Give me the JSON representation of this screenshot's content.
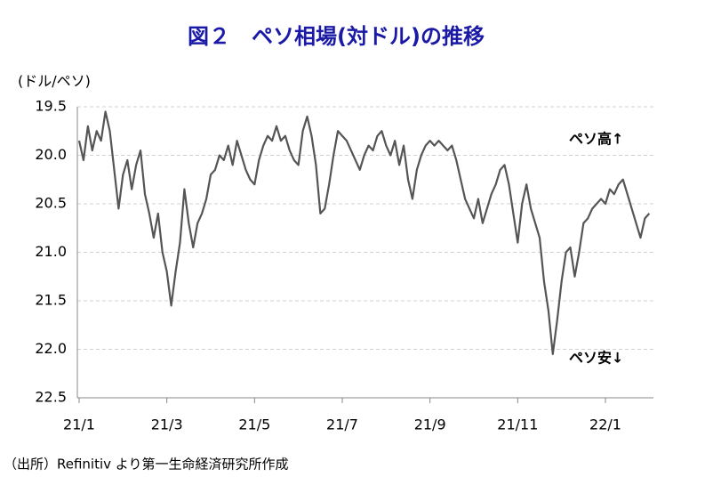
{
  "chart_data": {
    "type": "line",
    "title": "図２　ペソ相場(対ドル)の推移",
    "y_label": "(ドル/ペソ)",
    "source": "（出所）Refinitiv より第一生命経済研究所作成",
    "annotations": [
      "ペソ高↑",
      "ペソ安↓"
    ],
    "y_inverted": true,
    "grid": true,
    "ylim": [
      19.5,
      22.5
    ],
    "yticks": [
      {
        "value": 19.5,
        "label": "19.5"
      },
      {
        "value": 20,
        "label": "20.0"
      },
      {
        "value": 20.5,
        "label": "20.5"
      },
      {
        "value": 21,
        "label": "21.0"
      },
      {
        "value": 21.5,
        "label": "21.5"
      },
      {
        "value": 22,
        "label": "22.0"
      },
      {
        "value": 22.5,
        "label": "22.5"
      }
    ],
    "categories": [
      "21/1",
      null,
      null,
      null,
      null,
      null,
      null,
      null,
      null,
      null,
      null,
      null,
      null,
      null,
      null,
      null,
      null,
      null,
      null,
      null,
      "21/3",
      null,
      null,
      null,
      null,
      null,
      null,
      null,
      null,
      null,
      null,
      null,
      null,
      null,
      null,
      null,
      null,
      null,
      null,
      null,
      "21/5",
      null,
      null,
      null,
      null,
      null,
      null,
      null,
      null,
      null,
      null,
      null,
      null,
      null,
      null,
      null,
      null,
      null,
      null,
      null,
      "21/7",
      null,
      null,
      null,
      null,
      null,
      null,
      null,
      null,
      null,
      null,
      null,
      null,
      null,
      null,
      null,
      null,
      null,
      null,
      null,
      "21/9",
      null,
      null,
      null,
      null,
      null,
      null,
      null,
      null,
      null,
      null,
      null,
      null,
      null,
      null,
      null,
      null,
      null,
      null,
      null,
      "21/11",
      null,
      null,
      null,
      null,
      null,
      null,
      null,
      null,
      null,
      null,
      null,
      null,
      null,
      null,
      null,
      null,
      null,
      null,
      null,
      "22/1",
      null,
      null,
      null,
      null,
      null,
      null,
      null,
      null,
      null,
      null
    ],
    "series": [
      {
        "color": "#555555",
        "values": [
          19.85,
          20.05,
          19.7,
          19.95,
          19.75,
          19.85,
          19.55,
          19.75,
          20.15,
          20.55,
          20.2,
          20.05,
          20.35,
          20.1,
          19.95,
          20.4,
          20.6,
          20.85,
          20.6,
          21.0,
          21.2,
          21.55,
          21.2,
          20.9,
          20.35,
          20.7,
          20.95,
          20.7,
          20.6,
          20.45,
          20.2,
          20.15,
          20.0,
          20.05,
          19.9,
          20.1,
          19.85,
          20.0,
          20.15,
          20.25,
          20.3,
          20.05,
          19.9,
          19.8,
          19.85,
          19.7,
          19.85,
          19.8,
          19.95,
          20.05,
          20.1,
          19.75,
          19.6,
          19.8,
          20.1,
          20.6,
          20.55,
          20.3,
          20.0,
          19.75,
          19.8,
          19.85,
          19.95,
          20.05,
          20.15,
          20.0,
          19.9,
          19.95,
          19.8,
          19.75,
          19.9,
          20.0,
          19.85,
          20.1,
          19.9,
          20.25,
          20.45,
          20.15,
          20.0,
          19.9,
          19.85,
          19.9,
          19.85,
          19.9,
          19.95,
          19.9,
          20.05,
          20.25,
          20.45,
          20.55,
          20.65,
          20.45,
          20.7,
          20.55,
          20.4,
          20.3,
          20.15,
          20.1,
          20.3,
          20.6,
          20.9,
          20.5,
          20.3,
          20.55,
          20.7,
          20.85,
          21.3,
          21.6,
          22.05,
          21.7,
          21.3,
          21.0,
          20.95,
          21.25,
          21.0,
          20.7,
          20.65,
          20.55,
          20.5,
          20.45,
          20.5,
          20.35,
          20.4,
          20.3,
          20.25,
          20.4,
          20.55,
          20.7,
          20.85,
          20.65,
          20.6
        ]
      }
    ]
  }
}
